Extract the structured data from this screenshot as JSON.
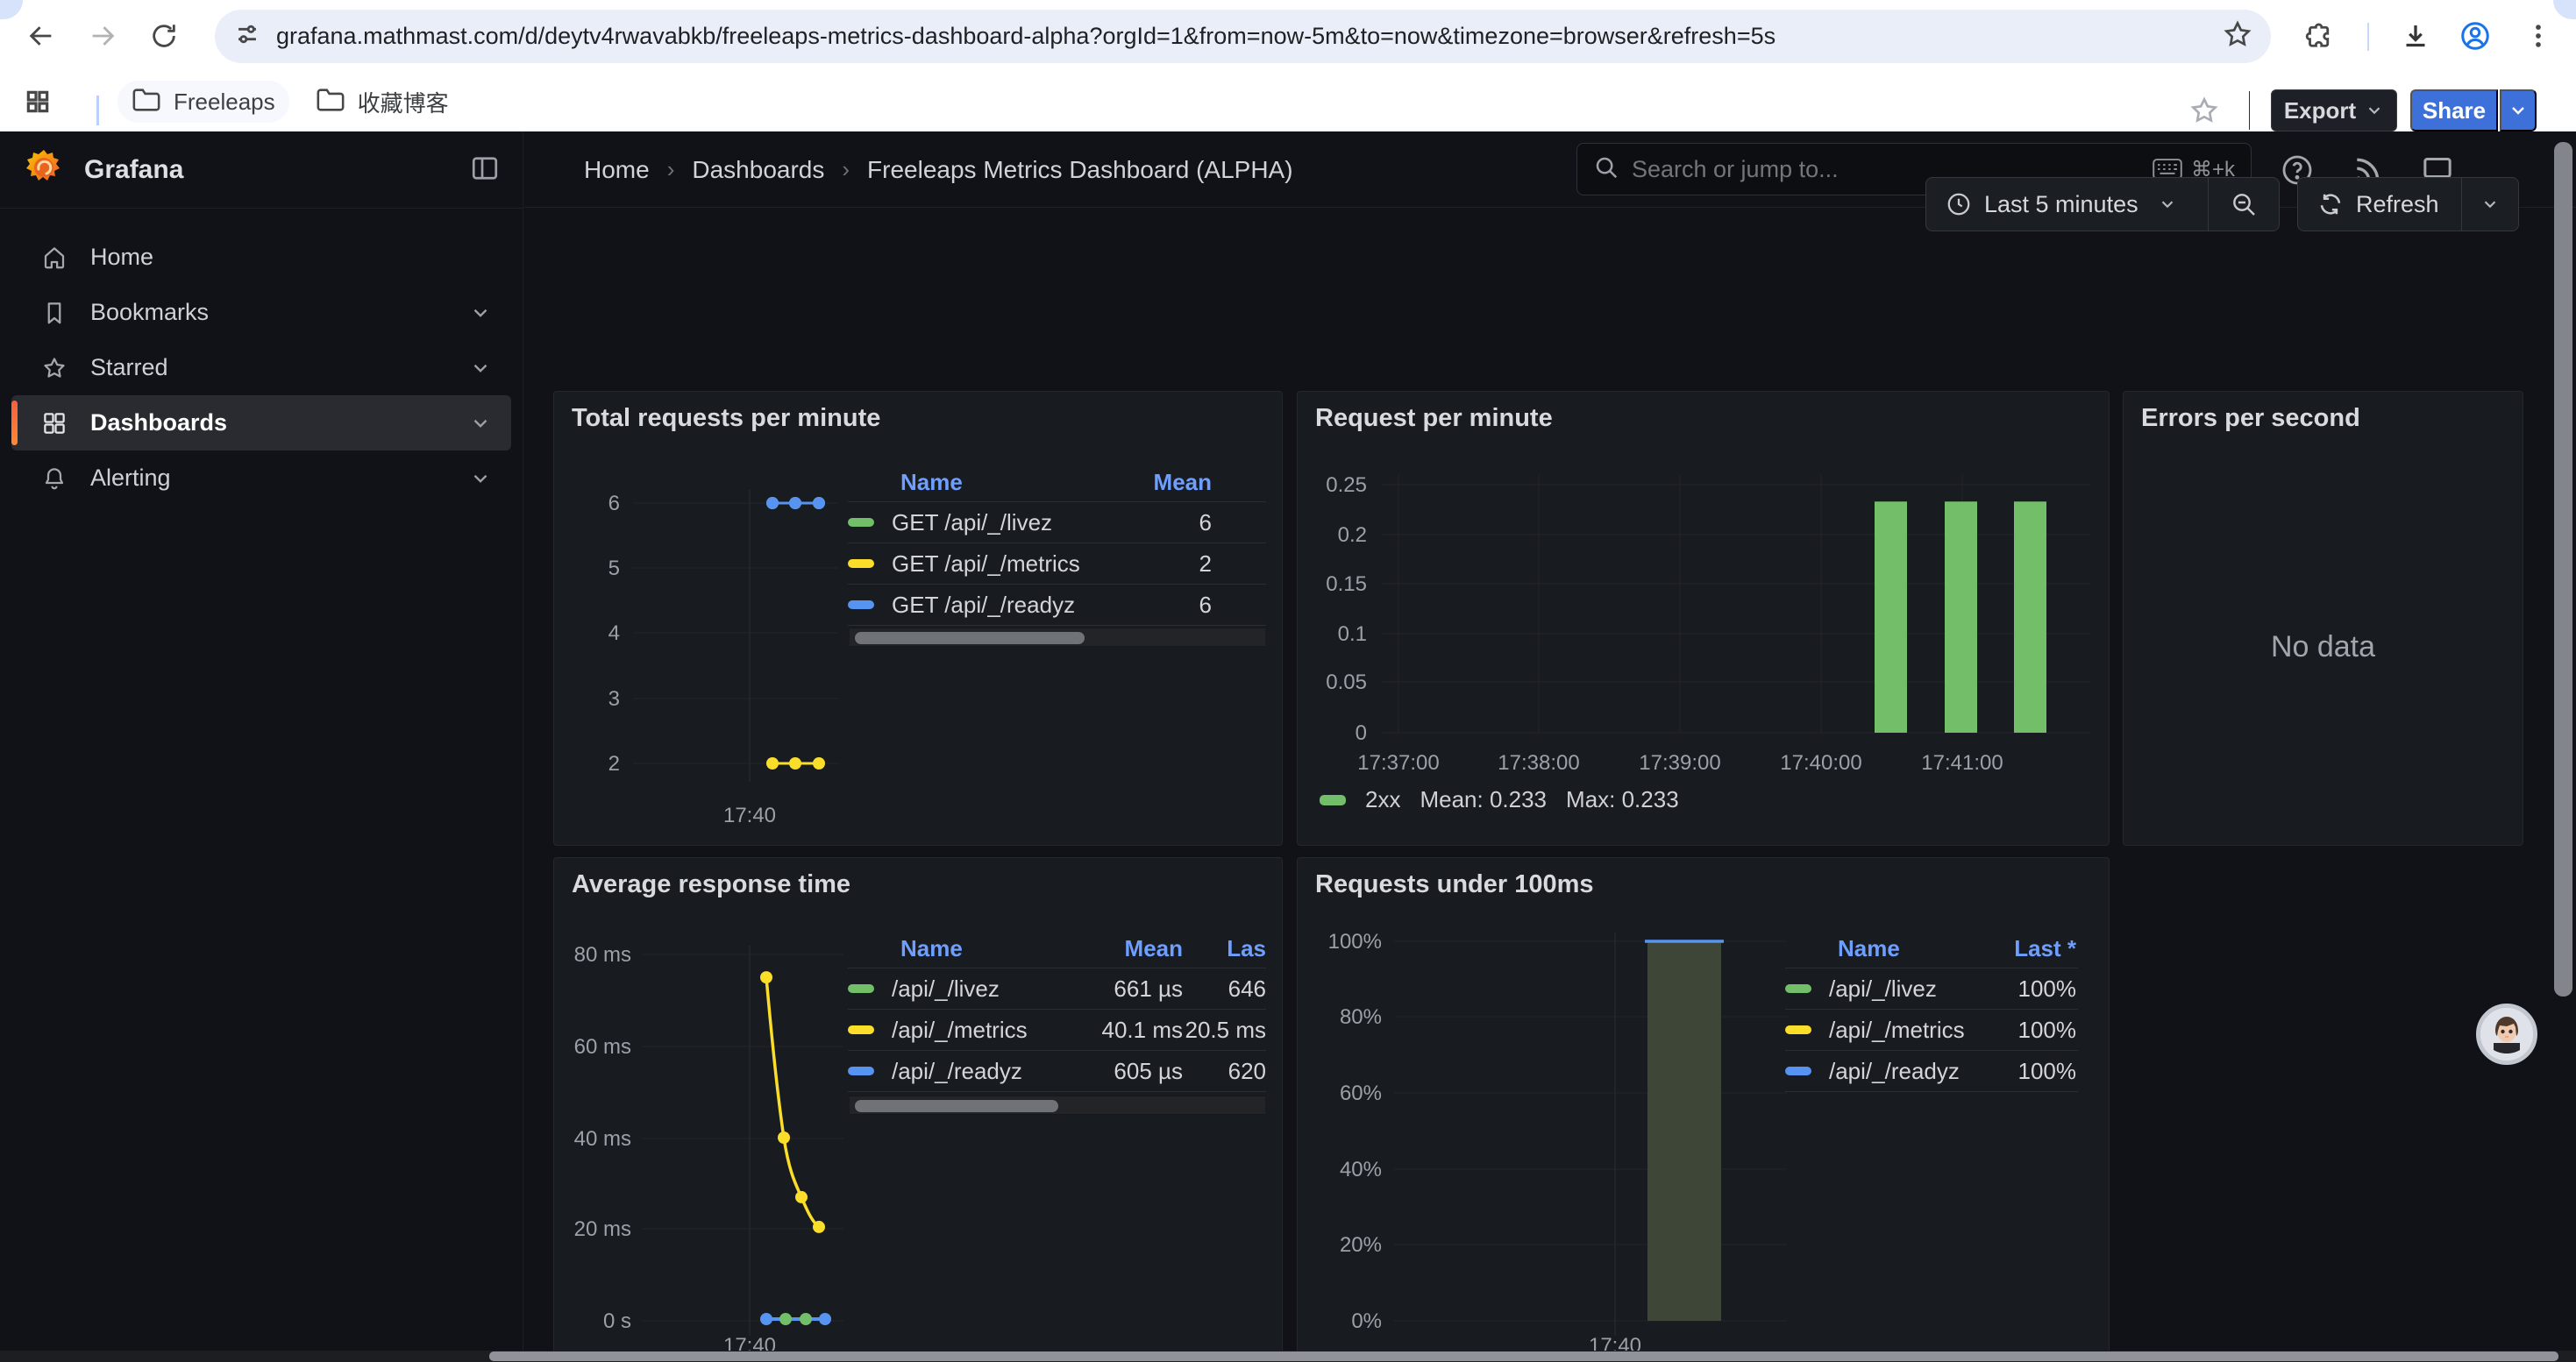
{
  "browser": {
    "url": "grafana.mathmast.com/d/deytv4rwavabkb/freeleaps-metrics-dashboard-alpha?orgId=1&from=now-5m&to=now&timezone=browser&refresh=5s",
    "bookmarks": [
      {
        "label": "Freeleaps"
      },
      {
        "label": "收藏博客"
      }
    ]
  },
  "sidebar": {
    "brand": "Grafana",
    "items": [
      {
        "label": "Home",
        "icon": "home-icon",
        "expandable": false,
        "active": false
      },
      {
        "label": "Bookmarks",
        "icon": "bookmark-icon",
        "expandable": true,
        "active": false
      },
      {
        "label": "Starred",
        "icon": "star-icon",
        "expandable": true,
        "active": false
      },
      {
        "label": "Dashboards",
        "icon": "grid-icon",
        "expandable": true,
        "active": true
      },
      {
        "label": "Alerting",
        "icon": "bell-icon",
        "expandable": true,
        "active": false
      }
    ]
  },
  "header": {
    "breadcrumb": [
      "Home",
      "Dashboards",
      "Freeleaps Metrics Dashboard (ALPHA)"
    ],
    "breadcrumb_separator": "›",
    "search_placeholder": "Search or jump to...",
    "search_shortcut": "⌘+k",
    "export_label": "Export",
    "share_label": "Share",
    "time_range": "Last 5 minutes",
    "refresh_label": "Refresh"
  },
  "colors": {
    "green": "#73BF69",
    "yellow": "#FADE2A",
    "blue": "#5794F2",
    "accent_blue": "#3D71D9",
    "link_blue": "#6e9fff",
    "orange": "#FF8833",
    "panel_bg": "#181b1f",
    "page_bg": "#111217",
    "grid_line": "#202329",
    "area_olive": "#3E4637"
  },
  "panels": {
    "p1": {
      "title": "Total requests per minute",
      "table": {
        "headers": [
          "Name",
          "Mean"
        ],
        "rows": [
          {
            "name": "GET /api/_/livez",
            "color": "#73BF69",
            "mean": "6"
          },
          {
            "name": "GET /api/_/metrics",
            "color": "#FADE2A",
            "mean": "2"
          },
          {
            "name": "GET /api/_/readyz",
            "color": "#5794F2",
            "mean": "6"
          }
        ]
      }
    },
    "p2": {
      "title": "Request per minute",
      "legend": {
        "series": "2xx",
        "mean": "Mean: 0.233",
        "max": "Max: 0.233"
      }
    },
    "p3": {
      "title": "Errors per second",
      "message": "No data"
    },
    "p4": {
      "title": "Average response time",
      "table": {
        "headers": [
          "Name",
          "Mean",
          "Las"
        ],
        "rows": [
          {
            "name": "/api/_/livez",
            "color": "#73BF69",
            "mean": "661 µs",
            "last": "646"
          },
          {
            "name": "/api/_/metrics",
            "color": "#FADE2A",
            "mean": "40.1 ms",
            "last": "20.5 ms"
          },
          {
            "name": "/api/_/readyz",
            "color": "#5794F2",
            "mean": "605 µs",
            "last": "620"
          }
        ]
      }
    },
    "p5": {
      "title": "Requests under 100ms",
      "table": {
        "headers": [
          "Name",
          "Last *"
        ],
        "rows": [
          {
            "name": "/api/_/livez",
            "color": "#73BF69",
            "last": "100%"
          },
          {
            "name": "/api/_/metrics",
            "color": "#FADE2A",
            "last": "100%"
          },
          {
            "name": "/api/_/readyz",
            "color": "#5794F2",
            "last": "100%"
          }
        ]
      }
    }
  },
  "chart_data": [
    {
      "panel": "total-requests-per-minute",
      "type": "line",
      "title": "Total requests per minute",
      "yticks": [
        "6",
        "5",
        "4",
        "3",
        "2"
      ],
      "ylim": [
        2,
        6
      ],
      "xticks": [
        "17:40"
      ],
      "x": [
        "17:40:10",
        "17:40:20",
        "17:40:30"
      ],
      "series": [
        {
          "name": "GET /api/_/livez",
          "color": "#73BF69",
          "values": [
            6,
            6,
            6
          ]
        },
        {
          "name": "GET /api/_/metrics",
          "color": "#FADE2A",
          "values": [
            2,
            2,
            2
          ]
        },
        {
          "name": "GET /api/_/readyz",
          "color": "#5794F2",
          "values": [
            6,
            6,
            6
          ]
        }
      ],
      "legend_position": "right-table"
    },
    {
      "panel": "request-per-minute",
      "type": "bar",
      "title": "Request per minute",
      "yticks": [
        "0.25",
        "0.2",
        "0.15",
        "0.1",
        "0.05",
        "0"
      ],
      "ylim": [
        0,
        0.25
      ],
      "xticks": [
        "17:37:00",
        "17:38:00",
        "17:39:00",
        "17:40:00",
        "17:41:00"
      ],
      "series": [
        {
          "name": "2xx",
          "color": "#73BF69",
          "x": [
            "17:40:30",
            "17:41:00",
            "17:41:30"
          ],
          "values": [
            0.233,
            0.233,
            0.233
          ],
          "mean": 0.233,
          "max": 0.233
        }
      ],
      "legend_position": "bottom"
    },
    {
      "panel": "errors-per-second",
      "type": "line",
      "title": "Errors per second",
      "no_data": true,
      "message": "No data"
    },
    {
      "panel": "average-response-time",
      "type": "line",
      "title": "Average response time",
      "yticks": [
        "80 ms",
        "60 ms",
        "40 ms",
        "20 ms",
        "0 s"
      ],
      "ylim_ms": [
        0,
        80
      ],
      "xticks": [
        "17:40"
      ],
      "x": [
        "17:40:00",
        "17:40:15",
        "17:40:30",
        "17:40:45"
      ],
      "series": [
        {
          "name": "/api/_/metrics",
          "color": "#FADE2A",
          "values_ms": [
            75,
            40,
            27,
            20.5
          ]
        },
        {
          "name": "/api/_/livez",
          "color": "#73BF69",
          "values_ms": [
            0.66,
            0.65,
            0.66,
            0.65
          ]
        },
        {
          "name": "/api/_/readyz",
          "color": "#5794F2",
          "values_ms": [
            0.6,
            0.61,
            0.6,
            0.62
          ]
        }
      ],
      "legend_position": "right-table"
    },
    {
      "panel": "requests-under-100ms",
      "type": "area",
      "title": "Requests under 100ms",
      "yticks": [
        "100%",
        "80%",
        "60%",
        "40%",
        "20%",
        "0%"
      ],
      "ylim_pct": [
        0,
        100
      ],
      "xticks": [
        "17:40"
      ],
      "area": {
        "x_range": [
          "17:40:15",
          "17:41:00"
        ],
        "top_pct": 100,
        "fill": "#3E4637",
        "top_line_color": "#5794F2"
      },
      "series": [
        {
          "name": "/api/_/livez",
          "color": "#73BF69",
          "last_pct": 100
        },
        {
          "name": "/api/_/metrics",
          "color": "#FADE2A",
          "last_pct": 100
        },
        {
          "name": "/api/_/readyz",
          "color": "#5794F2",
          "last_pct": 100
        }
      ],
      "legend_position": "right-table"
    }
  ]
}
